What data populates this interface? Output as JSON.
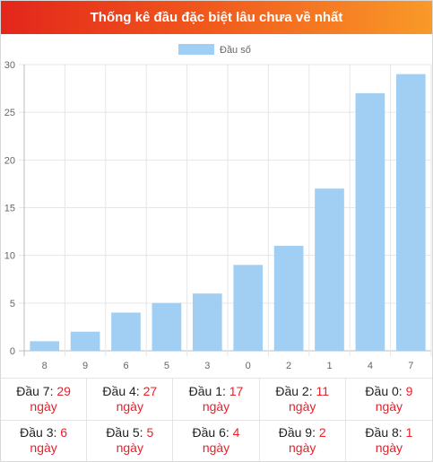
{
  "header": {
    "title": "Thống kê đầu đặc biệt lâu chưa về nhất"
  },
  "colors": {
    "bar": "#a0cff3",
    "accent_text": "#e8202a",
    "header_start": "#e3261b",
    "header_end": "#f99a28"
  },
  "chart_data": {
    "type": "bar",
    "title": "",
    "legend": {
      "label": "Đầu số",
      "position": "top"
    },
    "categories": [
      "8",
      "9",
      "6",
      "5",
      "3",
      "0",
      "2",
      "1",
      "4",
      "7"
    ],
    "series": [
      {
        "name": "Đầu số",
        "values": [
          1,
          2,
          4,
          5,
          6,
          9,
          11,
          17,
          27,
          29
        ]
      }
    ],
    "yticks": [
      0,
      5,
      10,
      15,
      20,
      25,
      30
    ],
    "ylim": [
      0,
      30
    ],
    "grid": true
  },
  "stats": [
    {
      "label": "Đầu 7: ",
      "value": "29",
      "unit": "ngày"
    },
    {
      "label": "Đầu 4: ",
      "value": "27",
      "unit": "ngày"
    },
    {
      "label": "Đầu 1: ",
      "value": "17",
      "unit": "ngày"
    },
    {
      "label": "Đầu 2: ",
      "value": "11",
      "unit": "ngày"
    },
    {
      "label": "Đầu 0: ",
      "value": "9",
      "unit": "ngày"
    },
    {
      "label": "Đầu 3: ",
      "value": "6",
      "unit": "ngày"
    },
    {
      "label": "Đầu 5: ",
      "value": "5",
      "unit": "ngày"
    },
    {
      "label": "Đầu 6: ",
      "value": "4",
      "unit": "ngày"
    },
    {
      "label": "Đầu 9: ",
      "value": "2",
      "unit": "ngày"
    },
    {
      "label": "Đầu 8: ",
      "value": "1",
      "unit": "ngày"
    }
  ]
}
